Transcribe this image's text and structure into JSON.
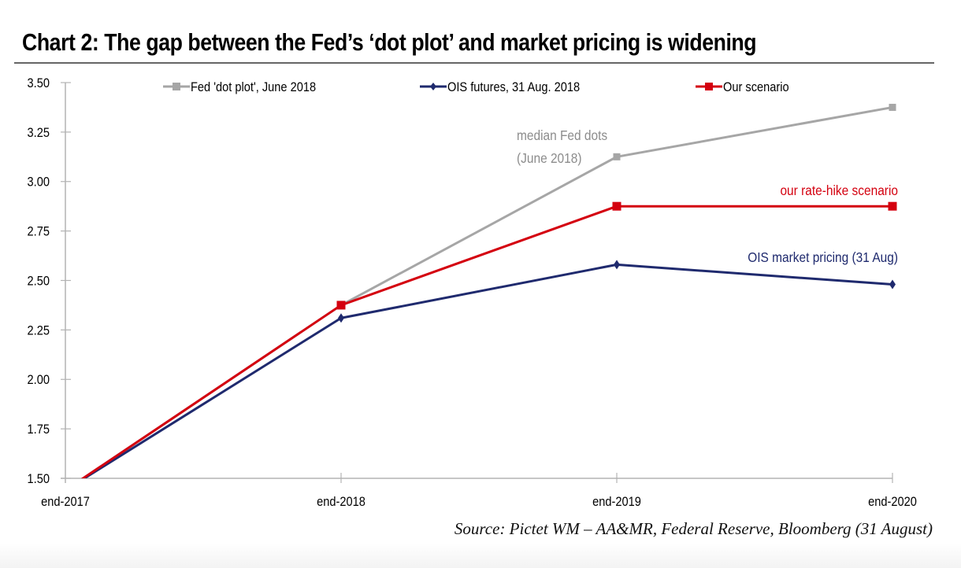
{
  "chart_data": {
    "type": "line",
    "title": "Chart 2: The gap between the Fed’s ‘dot plot’ and market pricing is widening",
    "xlabel": "",
    "ylabel": "",
    "categories": [
      "end-2017",
      "end-2018",
      "end-2019",
      "end-2020"
    ],
    "ylim": [
      1.5,
      3.5
    ],
    "yticks": [
      1.5,
      1.75,
      2.0,
      2.25,
      2.5,
      2.75,
      3.0,
      3.25,
      3.5
    ],
    "ytick_labels": [
      "1.50",
      "1.75",
      "2.00",
      "2.25",
      "2.50",
      "2.75",
      "3.00",
      "3.25",
      "3.50"
    ],
    "grid": false,
    "legend_position": "top",
    "series": [
      {
        "name": "Fed 'dot plot', June 2018",
        "color": "#a6a6a6",
        "marker": "square",
        "values": [
          1.44,
          2.375,
          3.125,
          3.375
        ]
      },
      {
        "name": "OIS futures, 31 Aug. 2018",
        "color": "#1f2a6e",
        "marker": "diamond",
        "values": [
          1.44,
          2.31,
          2.58,
          2.48
        ]
      },
      {
        "name": "Our scenario",
        "color": "#d4000f",
        "marker": "square",
        "values": [
          1.44,
          2.375,
          2.875,
          2.875
        ]
      }
    ],
    "annotations": [
      {
        "text": "median Fed dots",
        "series": 0,
        "color": "#8c8c8c"
      },
      {
        "text": "(June 2018)",
        "series": 0,
        "color": "#8c8c8c"
      },
      {
        "text": "our rate-hike scenario",
        "series": 2,
        "color": "#d4000f"
      },
      {
        "text": "OIS market pricing (31 Aug)",
        "series": 1,
        "color": "#1f2a6e"
      }
    ],
    "source": "Source: Pictet WM – AA&MR, Federal Reserve, Bloomberg (31 August)"
  },
  "colors": {
    "axis": "#b3b3b3",
    "title_rule": "#666666"
  }
}
